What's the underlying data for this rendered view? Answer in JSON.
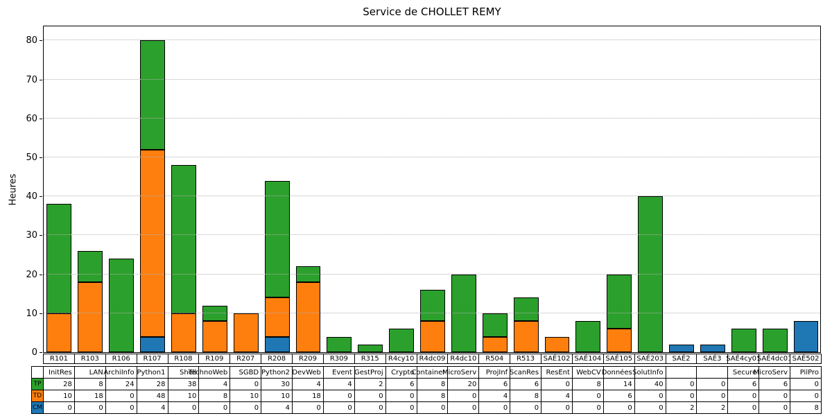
{
  "title": "Service de CHOLLET REMY",
  "y_axis": {
    "label": "Heures",
    "ticks": [
      0,
      10,
      20,
      30,
      40,
      50,
      60,
      70,
      80
    ]
  },
  "chart_data": {
    "type": "bar",
    "stacked": true,
    "title": "Service de CHOLLET REMY",
    "xlabel": "",
    "ylabel": "Heures",
    "ylim": [
      0,
      84
    ],
    "grid": "horizontal-dotted",
    "legend_position": "table-row-headers",
    "categories": [
      "R101",
      "R103",
      "R106",
      "R107",
      "R108",
      "R109",
      "R207",
      "R208",
      "R209",
      "R309",
      "R315",
      "R4cy10",
      "R4dc09",
      "R4dc10",
      "R504",
      "R513",
      "SAÉ102",
      "SAÉ104",
      "SAÉ105",
      "SAÉ203",
      "SAÉ2",
      "SAÉ3",
      "SAÉ4cy01",
      "SAÉ4dc01",
      "SAÉ502"
    ],
    "course_names": [
      "InitRes",
      "LAN",
      "ArchiInfo",
      "Python1",
      "Shell",
      "TechnoWeb",
      "SGBD",
      "Python2",
      "DevWeb",
      "Event",
      "GestProj",
      "Crypto",
      "Container",
      "MicroServ",
      "ProjInf",
      "ScanRes",
      "ResEnt",
      "WebCV",
      "Données",
      "SolutInfo",
      "",
      "",
      "Secure",
      "MicroServ",
      "PilPro"
    ],
    "series": [
      {
        "name": "TP",
        "color": "#2ca02c",
        "values": [
          28,
          8,
          24,
          28,
          38,
          4,
          0,
          30,
          4,
          4,
          2,
          6,
          8,
          20,
          6,
          6,
          0,
          8,
          14,
          40,
          0,
          0,
          6,
          6,
          0
        ]
      },
      {
        "name": "TD",
        "color": "#ff7f0e",
        "values": [
          10,
          18,
          0,
          48,
          10,
          8,
          10,
          10,
          18,
          0,
          0,
          0,
          8,
          0,
          4,
          8,
          4,
          0,
          6,
          0,
          0,
          0,
          0,
          0,
          0
        ]
      },
      {
        "name": "CM",
        "color": "#1f77b4",
        "values": [
          0,
          0,
          0,
          4,
          0,
          0,
          0,
          4,
          0,
          0,
          0,
          0,
          0,
          0,
          0,
          0,
          0,
          0,
          0,
          0,
          2,
          2,
          0,
          0,
          8
        ]
      }
    ],
    "stack_order_bottom_to_top": [
      "CM",
      "TD",
      "TP"
    ],
    "bar_edge_color": "#000000",
    "totals": [
      38,
      26,
      24,
      80,
      48,
      12,
      10,
      44,
      22,
      4,
      2,
      6,
      16,
      20,
      10,
      14,
      4,
      8,
      20,
      40,
      2,
      2,
      6,
      6,
      8
    ]
  }
}
